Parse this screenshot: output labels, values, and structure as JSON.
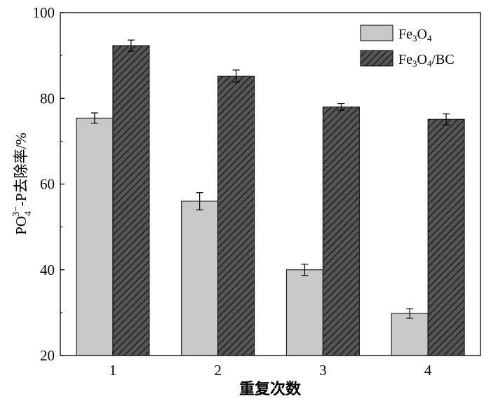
{
  "chart_data": {
    "type": "bar",
    "categories": [
      "1",
      "2",
      "3",
      "4"
    ],
    "series": [
      {
        "name_main": "Fe",
        "name_sub1": "3",
        "name_mid": "O",
        "name_sub2": "4",
        "name_tail": "",
        "color": "#c8c8c8",
        "pattern": "solid",
        "values": [
          75.4,
          56.0,
          40.0,
          29.8
        ],
        "errors": [
          1.2,
          2.0,
          1.3,
          1.1
        ]
      },
      {
        "name_main": "Fe",
        "name_sub1": "3",
        "name_mid": "O",
        "name_sub2": "4",
        "name_tail": "/BC",
        "color": "#444444",
        "pattern": "hatched",
        "values": [
          92.3,
          85.2,
          78.0,
          75.1
        ],
        "errors": [
          1.3,
          1.4,
          0.8,
          1.3
        ]
      }
    ],
    "xlabel": "重复次数",
    "ylabel_a": "PO",
    "ylabel_sub": "4",
    "ylabel_sup": "3−",
    "ylabel_b": "-P去除率/%",
    "ylim": [
      20,
      100
    ],
    "yticks": [
      20,
      40,
      60,
      80,
      100
    ],
    "grid": false,
    "legend_position": "top-right"
  }
}
